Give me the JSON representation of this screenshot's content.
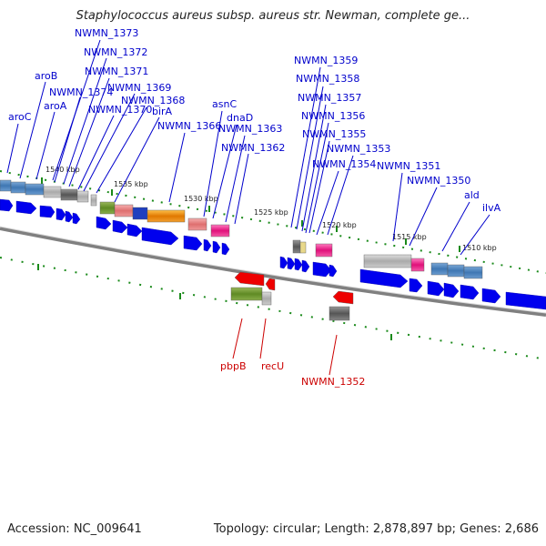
{
  "title": "Staphylococcus aureus subsp. aureus str. Newman, complete ge...",
  "footer": {
    "accession": "Accession: NC_009641",
    "meta": "Topology: circular; Length: 2,878,897 bp; Genes: 2,686"
  },
  "colors": {
    "forward_label": "#0000cc",
    "reverse_label": "#cc0000",
    "backbone": "#808080",
    "ticks": "#1a8a1a"
  },
  "ticks": [
    "1540 kbp",
    "1535 kbp",
    "1530 kbp",
    "1525 kbp",
    "1520 kbp",
    "1515 kbp",
    "1510 kbp"
  ],
  "forward_labels": [
    "NWMN_1373",
    "NWMN_1372",
    "NWMN_1371",
    "aroB",
    "NWMN_1374",
    "NWMN_1369",
    "NWMN_1368",
    "aroA",
    "NWMN_1370",
    "aroC",
    "birA",
    "NWMN_1366",
    "asnC",
    "dnaD",
    "NWMN_1363",
    "NWMN_1362",
    "NWMN_1359",
    "NWMN_1358",
    "NWMN_1357",
    "NWMN_1356",
    "NWMN_1355",
    "NWMN_1353",
    "NWMN_1354",
    "NWMN_1351",
    "NWMN_1350",
    "ald",
    "ilvA"
  ],
  "reverse_labels": [
    "pbpB",
    "recU",
    "NWMN_1352"
  ]
}
